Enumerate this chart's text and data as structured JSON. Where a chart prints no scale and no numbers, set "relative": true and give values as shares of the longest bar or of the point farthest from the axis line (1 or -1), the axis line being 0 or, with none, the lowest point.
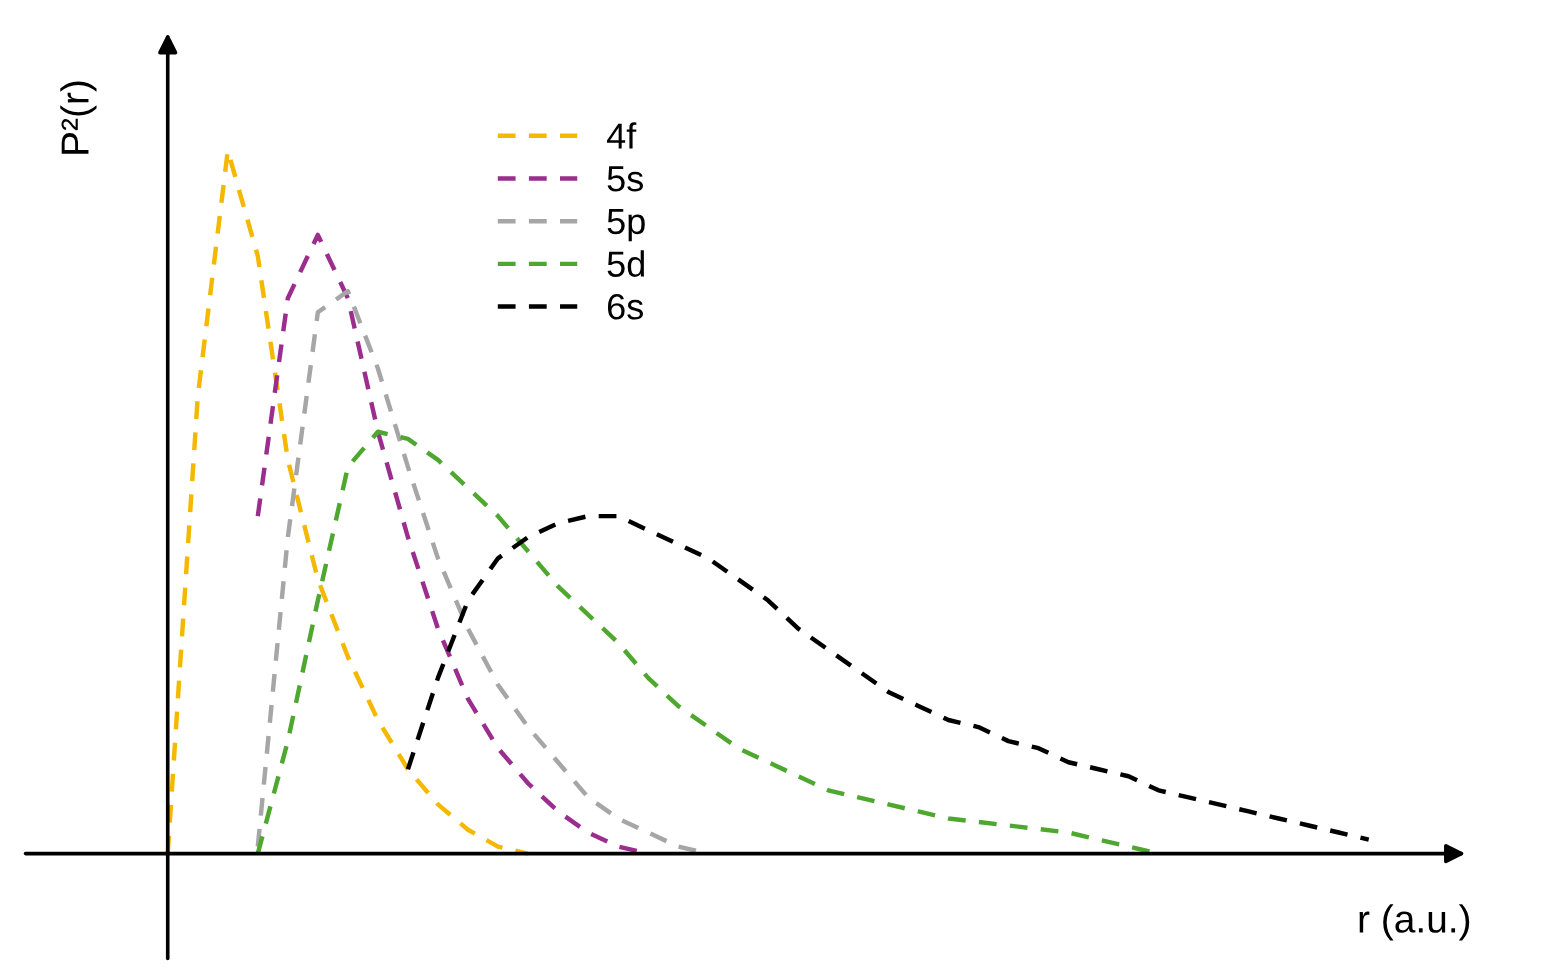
{
  "chart_data": {
    "type": "line",
    "relative": true,
    "xlabel": "r (a.u.)",
    "ylabel": "P²(r)",
    "line_style": "dashed",
    "marker": "none",
    "legend": "top",
    "tick_labels": false,
    "categories": [
      null,
      null,
      null,
      null,
      null,
      null,
      null,
      null,
      null,
      null,
      null,
      null,
      null,
      null,
      null,
      null,
      null,
      null,
      null,
      null,
      null,
      null,
      null,
      null,
      null,
      null,
      null,
      null,
      null,
      null,
      null,
      null,
      null,
      null,
      null,
      null,
      null,
      null,
      null,
      null,
      null
    ],
    "series": [
      {
        "name": "4f",
        "color": "#f5b800",
        "values": [
          0,
          0.65,
          1,
          0.85,
          0.56,
          0.39,
          0.28,
          0.19,
          0.12,
          0.07,
          0.034,
          0.01,
          0,
          null,
          null,
          null,
          null,
          null,
          null,
          null,
          null,
          null,
          null,
          null,
          null,
          null,
          null,
          null,
          null,
          null,
          null,
          null,
          null,
          null,
          null,
          null,
          null,
          null,
          null,
          null,
          null
        ]
      },
      {
        "name": "5s",
        "color": "#9b2d8e",
        "values": [
          null,
          null,
          null,
          0.48,
          0.79,
          0.88,
          0.79,
          0.6,
          0.45,
          0.32,
          0.22,
          0.15,
          0.1,
          0.06,
          0.03,
          0.01,
          0,
          null,
          null,
          null,
          null,
          null,
          null,
          null,
          null,
          null,
          null,
          null,
          null,
          null,
          null,
          null,
          null,
          null,
          null,
          null,
          null,
          null,
          null,
          null,
          null
        ]
      },
      {
        "name": "5p",
        "color": "#a6a6a6",
        "values": [
          null,
          null,
          null,
          0.01,
          0.45,
          0.77,
          0.8,
          0.69,
          0.55,
          0.42,
          0.32,
          0.24,
          0.18,
          0.13,
          0.08,
          0.05,
          0.03,
          0.01,
          0,
          null,
          null,
          null,
          null,
          null,
          null,
          null,
          null,
          null,
          null,
          null,
          null,
          null,
          null,
          null,
          null,
          null,
          null,
          null,
          null,
          null,
          null
        ]
      },
      {
        "name": "5d",
        "color": "#4ea72e",
        "values": [
          null,
          null,
          null,
          0,
          0.16,
          0.36,
          0.55,
          0.6,
          0.59,
          0.56,
          0.52,
          0.48,
          0.43,
          0.38,
          0.34,
          0.3,
          0.25,
          0.21,
          0.18,
          0.15,
          0.13,
          0.11,
          0.09,
          0.08,
          0.07,
          0.06,
          0.05,
          0.045,
          0.04,
          0.035,
          0.03,
          0.02,
          0.01,
          0,
          null,
          null,
          null,
          null,
          null,
          null,
          null
        ]
      },
      {
        "name": "6s",
        "color": "#000000",
        "values": [
          null,
          null,
          null,
          null,
          null,
          null,
          null,
          null,
          0.12,
          0.25,
          0.36,
          0.42,
          0.45,
          0.47,
          0.48,
          0.48,
          0.46,
          0.44,
          0.42,
          0.39,
          0.36,
          0.32,
          0.29,
          0.26,
          0.23,
          0.21,
          0.19,
          0.18,
          0.16,
          0.15,
          0.13,
          0.12,
          0.11,
          0.09,
          0.08,
          0.07,
          0.06,
          0.05,
          0.04,
          0.03,
          0.02
        ]
      }
    ]
  }
}
